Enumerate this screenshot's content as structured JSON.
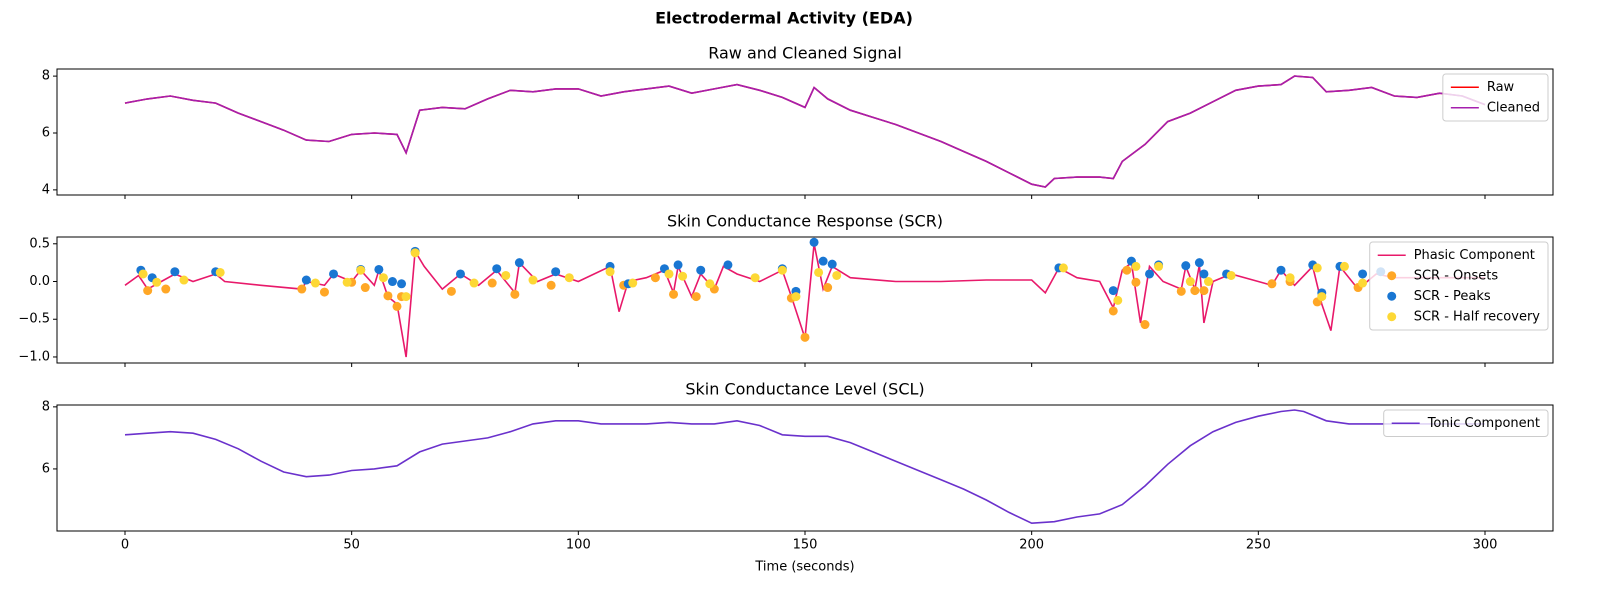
{
  "title": "Electrodermal Activity (EDA)",
  "chart_data": [
    {
      "type": "line",
      "title": "Raw and Cleaned Signal",
      "xlim": [
        -15,
        315
      ],
      "ylim": [
        3.82,
        8.25
      ],
      "yticks": [
        4,
        6,
        8
      ],
      "legend": "upper right",
      "series": [
        {
          "name": "Raw",
          "color": "#ff0000",
          "type": "line",
          "x": [
            0,
            5,
            10,
            15,
            20,
            25,
            30,
            35,
            40,
            45,
            50,
            55,
            60,
            62,
            65,
            70,
            75,
            80,
            85,
            90,
            95,
            100,
            105,
            110,
            115,
            120,
            125,
            130,
            135,
            140,
            145,
            150,
            152,
            155,
            160,
            165,
            170,
            175,
            180,
            185,
            190,
            195,
            200,
            203,
            205,
            210,
            215,
            218,
            220,
            225,
            230,
            235,
            240,
            245,
            250,
            255,
            258,
            262,
            265,
            270,
            275,
            280,
            285,
            290,
            295,
            300
          ],
          "values": [
            7.05,
            7.2,
            7.3,
            7.15,
            7.05,
            6.7,
            6.4,
            6.1,
            5.75,
            5.7,
            5.95,
            6.0,
            5.95,
            5.3,
            6.8,
            6.9,
            6.85,
            7.2,
            7.5,
            7.45,
            7.55,
            7.55,
            7.3,
            7.45,
            7.55,
            7.65,
            7.4,
            7.55,
            7.7,
            7.5,
            7.25,
            6.9,
            7.6,
            7.2,
            6.8,
            6.55,
            6.3,
            6.0,
            5.7,
            5.35,
            5.0,
            4.6,
            4.2,
            4.1,
            4.4,
            4.45,
            4.45,
            4.4,
            5.0,
            5.6,
            6.4,
            6.7,
            7.1,
            7.5,
            7.65,
            7.7,
            8.0,
            7.95,
            7.45,
            7.5,
            7.6,
            7.3,
            7.25,
            7.4,
            7.3,
            7.0
          ]
        },
        {
          "name": "Cleaned",
          "color": "#a51fae",
          "type": "line",
          "x": [
            0,
            5,
            10,
            15,
            20,
            25,
            30,
            35,
            40,
            45,
            50,
            55,
            60,
            62,
            65,
            70,
            75,
            80,
            85,
            90,
            95,
            100,
            105,
            110,
            115,
            120,
            125,
            130,
            135,
            140,
            145,
            150,
            152,
            155,
            160,
            165,
            170,
            175,
            180,
            185,
            190,
            195,
            200,
            203,
            205,
            210,
            215,
            218,
            220,
            225,
            230,
            235,
            240,
            245,
            250,
            255,
            258,
            262,
            265,
            270,
            275,
            280,
            285,
            290,
            295,
            300
          ],
          "values": [
            7.05,
            7.2,
            7.3,
            7.15,
            7.05,
            6.7,
            6.4,
            6.1,
            5.75,
            5.7,
            5.95,
            6.0,
            5.95,
            5.3,
            6.8,
            6.9,
            6.85,
            7.2,
            7.5,
            7.45,
            7.55,
            7.55,
            7.3,
            7.45,
            7.55,
            7.65,
            7.4,
            7.55,
            7.7,
            7.5,
            7.25,
            6.9,
            7.6,
            7.2,
            6.8,
            6.55,
            6.3,
            6.0,
            5.7,
            5.35,
            5.0,
            4.6,
            4.2,
            4.1,
            4.4,
            4.45,
            4.45,
            4.4,
            5.0,
            5.6,
            6.4,
            6.7,
            7.1,
            7.5,
            7.65,
            7.7,
            8.0,
            7.95,
            7.45,
            7.5,
            7.6,
            7.3,
            7.25,
            7.4,
            7.3,
            7.0
          ]
        }
      ]
    },
    {
      "type": "line",
      "title": "Skin Conductance Response (SCR)",
      "xlim": [
        -15,
        315
      ],
      "ylim": [
        -1.08,
        0.59
      ],
      "yticks": [
        {
          "value": -1,
          "label": "−1.0"
        },
        {
          "value": -0.5,
          "label": "−0.5"
        },
        {
          "value": 0,
          "label": "0.0"
        },
        0.5
      ],
      "legend": "upper right",
      "series": [
        {
          "name": "Phasic Component",
          "color": "#e8196a",
          "type": "line",
          "x": [
            0,
            3,
            5,
            8,
            11,
            15,
            20,
            22,
            30,
            39,
            40,
            44,
            46,
            50,
            52,
            55,
            56,
            58,
            60,
            62,
            64,
            66,
            70,
            74,
            78,
            82,
            86,
            87,
            91,
            95,
            100,
            107,
            109,
            111,
            115,
            119,
            121,
            122,
            125,
            127,
            130,
            132,
            135,
            140,
            145,
            147,
            150,
            152,
            154,
            156,
            160,
            170,
            180,
            190,
            200,
            203,
            206,
            210,
            215,
            218,
            220,
            222,
            224,
            226,
            229,
            233,
            234,
            236,
            237,
            238,
            240,
            244,
            250,
            253,
            255,
            258,
            262,
            264,
            266,
            268,
            272,
            276,
            280,
            290,
            300
          ],
          "values": [
            -0.05,
            0.08,
            -0.1,
            0.0,
            0.1,
            0.0,
            0.1,
            0.0,
            -0.05,
            -0.1,
            0.0,
            -0.05,
            0.1,
            0.0,
            0.15,
            -0.05,
            0.15,
            -0.2,
            -0.3,
            -1.0,
            0.4,
            0.2,
            -0.1,
            0.1,
            -0.05,
            0.15,
            -0.15,
            0.25,
            0.0,
            0.1,
            0.0,
            0.2,
            -0.4,
            0.0,
            0.05,
            0.15,
            -0.15,
            0.2,
            -0.2,
            0.1,
            -0.1,
            0.2,
            0.1,
            0.0,
            0.15,
            -0.2,
            -0.75,
            0.5,
            -0.1,
            0.2,
            0.05,
            0.0,
            0.0,
            0.02,
            0.02,
            -0.15,
            0.18,
            0.05,
            0.0,
            -0.35,
            0.15,
            0.25,
            -0.55,
            0.2,
            0.0,
            -0.1,
            0.2,
            -0.1,
            0.22,
            -0.55,
            0.0,
            0.1,
            0.0,
            -0.05,
            0.15,
            -0.05,
            0.2,
            -0.3,
            -0.65,
            0.2,
            -0.1,
            0.1,
            0.05,
            0.05,
            0.05
          ]
        },
        {
          "name": "SCR - Onsets",
          "color": "#ffa726",
          "type": "scatter",
          "x": [
            5,
            9,
            39,
            44,
            50,
            53,
            58,
            60,
            61,
            72,
            81,
            86,
            94,
            110,
            117,
            121,
            126,
            130,
            147,
            150,
            155,
            218,
            221,
            223,
            225,
            233,
            236,
            238,
            253,
            257,
            263,
            272
          ],
          "values": [
            -0.12,
            -0.1,
            -0.1,
            -0.14,
            -0.01,
            -0.08,
            -0.19,
            -0.33,
            -0.2,
            -0.13,
            -0.02,
            -0.17,
            -0.05,
            -0.05,
            0.05,
            -0.17,
            -0.2,
            -0.1,
            -0.22,
            -0.74,
            -0.08,
            -0.39,
            0.15,
            -0.01,
            -0.57,
            -0.13,
            -0.12,
            -0.12,
            -0.03,
            0.0,
            -0.27,
            -0.08
          ]
        },
        {
          "name": "SCR - Peaks",
          "color": "#1976d2",
          "type": "scatter",
          "x": [
            3.5,
            6,
            11,
            20,
            40,
            46,
            52,
            56,
            59,
            61,
            64,
            74,
            82,
            87,
            95,
            107,
            111,
            119,
            122,
            127,
            133,
            145,
            148,
            152,
            154,
            156,
            206,
            218,
            222,
            226,
            228,
            234,
            237,
            238,
            243,
            255,
            262,
            264,
            268,
            273,
            277
          ],
          "values": [
            0.15,
            0.05,
            0.13,
            0.13,
            0.02,
            0.1,
            0.16,
            0.16,
            0.0,
            -0.03,
            0.4,
            0.1,
            0.17,
            0.25,
            0.13,
            0.2,
            -0.03,
            0.17,
            0.22,
            0.15,
            0.22,
            0.17,
            -0.13,
            0.52,
            0.27,
            0.23,
            0.18,
            -0.12,
            0.27,
            0.1,
            0.22,
            0.21,
            0.25,
            0.1,
            0.1,
            0.15,
            0.22,
            -0.15,
            0.2,
            0.1,
            0.13
          ]
        },
        {
          "name": "SCR - Half recovery",
          "color": "#fdd835",
          "type": "scatter",
          "x": [
            4,
            7,
            13,
            21,
            42,
            49,
            52,
            57,
            62,
            64,
            77,
            84,
            90,
            98,
            107,
            112,
            120,
            123,
            129,
            139,
            145,
            148,
            153,
            157,
            207,
            219,
            223,
            228,
            235,
            239,
            244,
            257,
            263,
            264,
            269,
            273
          ],
          "values": [
            0.1,
            -0.01,
            0.02,
            0.12,
            -0.02,
            -0.01,
            0.15,
            0.05,
            -0.2,
            0.38,
            -0.02,
            0.08,
            0.02,
            0.05,
            0.13,
            -0.02,
            0.1,
            0.07,
            -0.03,
            0.05,
            0.15,
            -0.2,
            0.12,
            0.08,
            0.18,
            -0.25,
            0.2,
            0.2,
            0.0,
            0.0,
            0.08,
            0.05,
            0.18,
            -0.2,
            0.2,
            -0.02
          ]
        }
      ]
    },
    {
      "type": "line",
      "title": "Skin Conductance Level (SCL)",
      "xlabel": "Time (seconds)",
      "xlim": [
        -15,
        315
      ],
      "xticks": [
        0,
        50,
        100,
        150,
        200,
        250,
        300
      ],
      "ylim": [
        4.0,
        8.06
      ],
      "yticks": [
        6,
        8
      ],
      "legend": "upper right",
      "series": [
        {
          "name": "Tonic Component",
          "color": "#6a31cc",
          "type": "line",
          "x": [
            0,
            5,
            10,
            15,
            20,
            25,
            30,
            35,
            40,
            45,
            50,
            55,
            60,
            65,
            70,
            75,
            80,
            85,
            90,
            95,
            100,
            105,
            110,
            115,
            120,
            125,
            130,
            135,
            140,
            145,
            150,
            155,
            160,
            165,
            170,
            175,
            180,
            185,
            190,
            195,
            200,
            205,
            210,
            215,
            220,
            225,
            230,
            235,
            240,
            245,
            250,
            255,
            258,
            260,
            265,
            270,
            275,
            280,
            290,
            300
          ],
          "values": [
            7.1,
            7.15,
            7.2,
            7.15,
            6.95,
            6.65,
            6.25,
            5.9,
            5.75,
            5.8,
            5.95,
            6.0,
            6.1,
            6.55,
            6.8,
            6.9,
            7.0,
            7.2,
            7.45,
            7.55,
            7.55,
            7.45,
            7.45,
            7.45,
            7.5,
            7.45,
            7.45,
            7.55,
            7.4,
            7.1,
            7.05,
            7.05,
            6.85,
            6.55,
            6.25,
            5.95,
            5.65,
            5.35,
            5.0,
            4.6,
            4.25,
            4.3,
            4.45,
            4.55,
            4.85,
            5.45,
            6.15,
            6.75,
            7.2,
            7.5,
            7.7,
            7.85,
            7.9,
            7.85,
            7.55,
            7.45,
            7.45,
            7.45,
            7.45,
            7.45
          ]
        }
      ]
    }
  ]
}
